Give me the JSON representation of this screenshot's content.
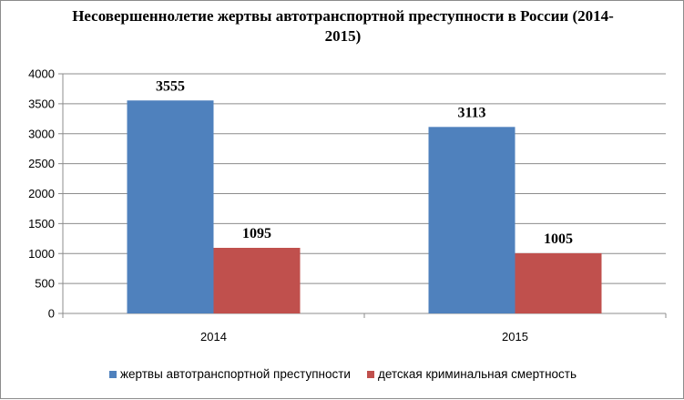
{
  "chart_data": {
    "type": "bar",
    "title": "Несовершеннолетие жертвы автотранспортной преступности в России (2014-2015)",
    "categories": [
      "2014",
      "2015"
    ],
    "series": [
      {
        "name": "жертвы автотранспортной преступности",
        "values": [
          3555,
          3113
        ],
        "color": "#4f81bd"
      },
      {
        "name": "детская криминальная смертность",
        "values": [
          1095,
          1005
        ],
        "color": "#c0504d"
      }
    ],
    "ylim": [
      0,
      4000
    ],
    "yticks": [
      0,
      500,
      1000,
      1500,
      2000,
      2500,
      3000,
      3500,
      4000
    ],
    "grid": true,
    "legend_position": "bottom",
    "data_labels": true
  }
}
